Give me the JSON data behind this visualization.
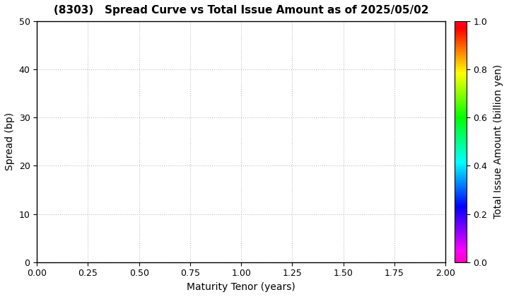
{
  "title": "(8303)   Spread Curve vs Total Issue Amount as of 2025/05/02",
  "xlabel": "Maturity Tenor (years)",
  "ylabel": "Spread (bp)",
  "colorbar_label": "Total Issue Amount (billion yen)",
  "xlim": [
    0.0,
    2.0
  ],
  "ylim": [
    0,
    50
  ],
  "xticks": [
    0.0,
    0.25,
    0.5,
    0.75,
    1.0,
    1.25,
    1.5,
    1.75,
    2.0
  ],
  "yticks": [
    0,
    10,
    20,
    30,
    40,
    50
  ],
  "colorbar_ticks": [
    0.0,
    0.2,
    0.4,
    0.6,
    0.8,
    1.0
  ],
  "grid_color": "#c0c0c0",
  "background_color": "#ffffff",
  "title_fontsize": 11,
  "axis_label_fontsize": 10,
  "tick_fontsize": 9,
  "colorbar_tick_fontsize": 9,
  "colorbar_label_fontsize": 10,
  "cmap": "gist_rainbow_r"
}
